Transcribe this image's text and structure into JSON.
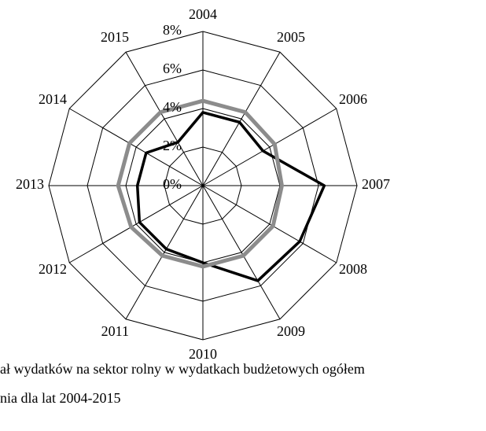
{
  "chart_data": {
    "type": "radar",
    "categories": [
      "2004",
      "2005",
      "2006",
      "2007",
      "2008",
      "2009",
      "2010",
      "2011",
      "2012",
      "2013",
      "2014",
      "2015"
    ],
    "ylim": [
      0,
      8
    ],
    "yticks": [
      {
        "value": 0,
        "label": "0%"
      },
      {
        "value": 2,
        "label": "2%"
      },
      {
        "value": 4,
        "label": "4%"
      },
      {
        "value": 6,
        "label": "6%"
      },
      {
        "value": 8,
        "label": "8%"
      }
    ],
    "grid": true,
    "series": [
      {
        "name": "ał wydatków na sektor rolny w wydatkach budżetowych ogółem",
        "color": "#000000",
        "values": [
          3.8,
          3.8,
          3.6,
          6.3,
          5.8,
          5.7,
          4.0,
          3.8,
          3.8,
          3.4,
          3.4,
          2.6
        ]
      },
      {
        "name": "nia dla lat 2004-2015",
        "color": "#8c8c8c",
        "values": [
          4.4,
          4.4,
          4.3,
          4.1,
          4.2,
          4.2,
          4.2,
          4.2,
          4.3,
          4.4,
          4.4,
          4.4
        ]
      }
    ]
  }
}
